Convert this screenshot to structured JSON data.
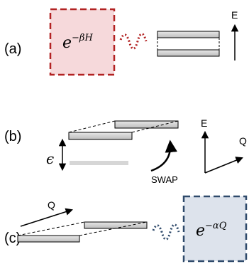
{
  "panels": {
    "a": {
      "label": "(a)",
      "reservoir_expr": "e",
      "reservoir_exponent": "−βH",
      "axis_label": "E"
    },
    "b": {
      "label": "(b)",
      "epsilon": "ϵ",
      "swap": "SWAP",
      "axis_e": "E",
      "axis_q": "Q"
    },
    "c": {
      "label": "(c)",
      "q_label": "Q",
      "reservoir_expr": "e",
      "reservoir_exponent": "−αQ"
    }
  },
  "colors": {
    "reservoir_a_border": "#b22222",
    "reservoir_a_fill": "#f6d9db",
    "reservoir_c_border": "#2f4a6b",
    "reservoir_c_fill": "#dde3ec",
    "wave_a": "#b22222",
    "wave_c": "#2f4a6b",
    "level_fill": "#cfcfcf"
  }
}
